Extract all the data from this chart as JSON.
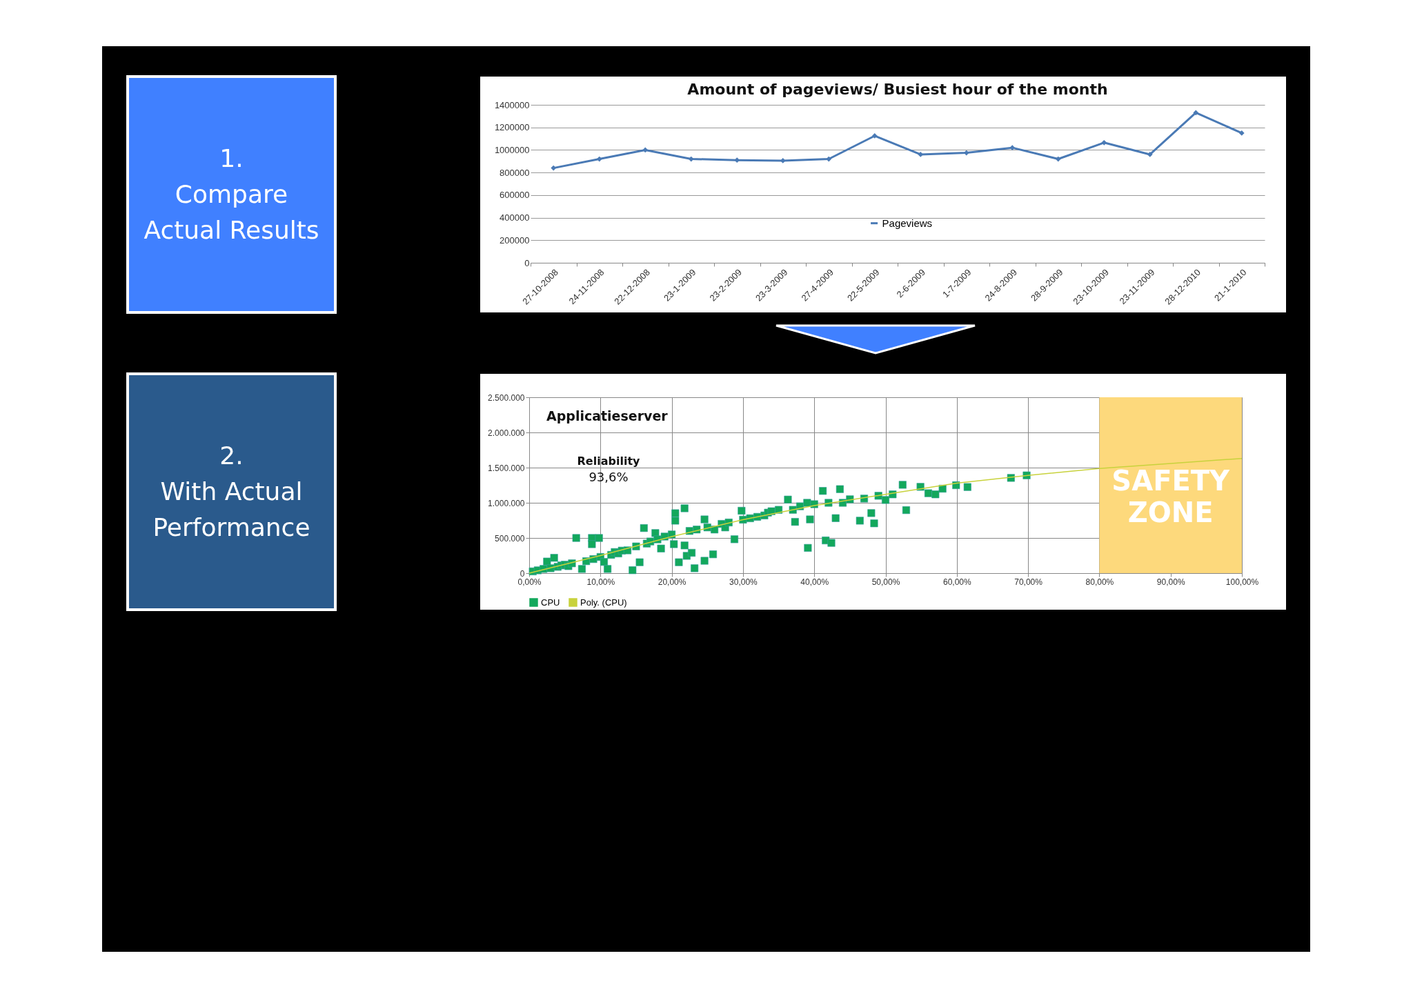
{
  "chart_data": [
    {
      "type": "other",
      "annotations": [
        "1.",
        "Compare",
        "Actual Results"
      ]
    },
    {
      "type": "line",
      "title": "Amount of pageviews/ Busiest hour of the month",
      "categories": [
        "27-10-2008",
        "24-11-2008",
        "22-12-2008",
        "23-1-2009",
        "23-2-2009",
        "23-3-2009",
        "27-4-2009",
        "22-5-2009",
        "2-6-2009",
        "1-7-2009",
        "24-8-2009",
        "28-9-2009",
        "23-10-2009",
        "23-11-2009",
        "28-12-2010",
        "21-1-2010"
      ],
      "series": [
        {
          "name": "Pageviews",
          "color": "#4a7ab5",
          "values": [
            840000,
            920000,
            1000000,
            920000,
            910000,
            905000,
            920000,
            1125000,
            960000,
            975000,
            1020000,
            920000,
            1065000,
            960000,
            1330000,
            1150000
          ]
        }
      ],
      "ylim": [
        0,
        1400000
      ],
      "yticks": [
        0,
        200000,
        400000,
        600000,
        800000,
        1000000,
        1200000,
        1400000
      ],
      "grid": "y",
      "legend": "center",
      "marker": "diamond"
    },
    {
      "type": "other",
      "annotations": [
        "2.",
        "With Actual",
        "Performance"
      ]
    },
    {
      "type": "scatter",
      "title": "Applicatieserver",
      "annotations": [
        "Reliability",
        "93,6%"
      ],
      "series": [
        {
          "name": "CPU",
          "color": "#13a85c",
          "marker": "square",
          "x": [
            0.5,
            1.2,
            2,
            2.5,
            3,
            3.5,
            4,
            4.5,
            5,
            5.5,
            6,
            6.6,
            7.4,
            8,
            8.8,
            8.8,
            9.8,
            9,
            10,
            10.5,
            11,
            11.5,
            12,
            12.5,
            13,
            13.8,
            14.5,
            15,
            15.5,
            16.1,
            16.5,
            17,
            17.7,
            18,
            18.5,
            19,
            20,
            20.3,
            20.5,
            20.5,
            21,
            21.8,
            21.8,
            22.1,
            22.5,
            22.8,
            23.2,
            23.5,
            24.6,
            24.6,
            25,
            25.8,
            26,
            27,
            27.5,
            28,
            28.8,
            29.8,
            30,
            31,
            32,
            33,
            33.5,
            34,
            35,
            36.3,
            37,
            37.3,
            38,
            39,
            39.1,
            39.4,
            40,
            41.2,
            41.6,
            42,
            42.4,
            43,
            43.6,
            44,
            45,
            46.4,
            47,
            48,
            48.4,
            49,
            50,
            51,
            52.4,
            52.9,
            54.9,
            56,
            57,
            58,
            59.9,
            61.5,
            67.6,
            69.8
          ],
          "values": [
            25000,
            40000,
            60000,
            165000,
            70000,
            218000,
            90000,
            110000,
            120000,
            100000,
            140000,
            500000,
            60000,
            170000,
            500000,
            412000,
            500000,
            200000,
            230000,
            160000,
            60000,
            260000,
            300000,
            280000,
            320000,
            324000,
            42000,
            380000,
            155000,
            641000,
            420000,
            450000,
            570000,
            480000,
            350000,
            520000,
            550000,
            412000,
            852000,
            746000,
            155000,
            922000,
            394000,
            246000,
            600000,
            289000,
            70000,
            620000,
            764000,
            176000,
            650000,
            268000,
            620000,
            700000,
            650000,
            720000,
            482000,
            887000,
            760000,
            780000,
            800000,
            820000,
            860000,
            880000,
            900000,
            1046000,
            900000,
            729000,
            950000,
            1000000,
            359000,
            764000,
            980000,
            1169000,
            465000,
            1000000,
            430000,
            782000,
            1194000,
            1000000,
            1050000,
            746000,
            1060000,
            854000,
            708000,
            1100000,
            1040000,
            1120000,
            1256000,
            896000,
            1227000,
            1136000,
            1120000,
            1200000,
            1250000,
            1224000,
            1354000,
            1390000
          ]
        },
        {
          "name": "Poly. (CPU)",
          "type": "line",
          "color": "#c8d23c",
          "x": [
            0,
            10,
            20,
            30,
            40,
            50,
            60,
            70,
            80,
            90,
            100
          ],
          "values": [
            0,
            250000,
            520000,
            760000,
            960000,
            1120000,
            1280000,
            1390000,
            1487000,
            1560000,
            1630000
          ]
        }
      ],
      "xlim": [
        0,
        100
      ],
      "xticks": [
        {
          "value": 0,
          "label": "0,00%"
        },
        {
          "value": 10,
          "label": "10,00%"
        },
        {
          "value": 20,
          "label": "20,00%"
        },
        {
          "value": 30,
          "label": "30,00%"
        },
        {
          "value": 40,
          "label": "40,00%"
        },
        {
          "value": 50,
          "label": "50,00%"
        },
        {
          "value": 60,
          "label": "60,00%"
        },
        {
          "value": 70,
          "label": "70,00%"
        },
        {
          "value": 80,
          "label": "80,00%"
        },
        {
          "value": 90,
          "label": "90,00%"
        },
        {
          "value": 100,
          "label": "100,00%"
        }
      ],
      "ylim": [
        0,
        2500000
      ],
      "yticks": [
        0,
        {
          "value": 500000,
          "label": "500.000"
        },
        {
          "value": 1000000,
          "label": "1.000.000"
        },
        {
          "value": 1500000,
          "label": "1.500.000"
        },
        {
          "value": 2000000,
          "label": "2.000.000"
        },
        {
          "value": 2500000,
          "label": "2.500.000"
        }
      ],
      "bands": [
        {
          "axis": "x",
          "from": 80,
          "to": 100,
          "label": "SAFETY ZONE",
          "color": "#fdd97c"
        }
      ],
      "grid": true,
      "legend": "bottom"
    }
  ]
}
